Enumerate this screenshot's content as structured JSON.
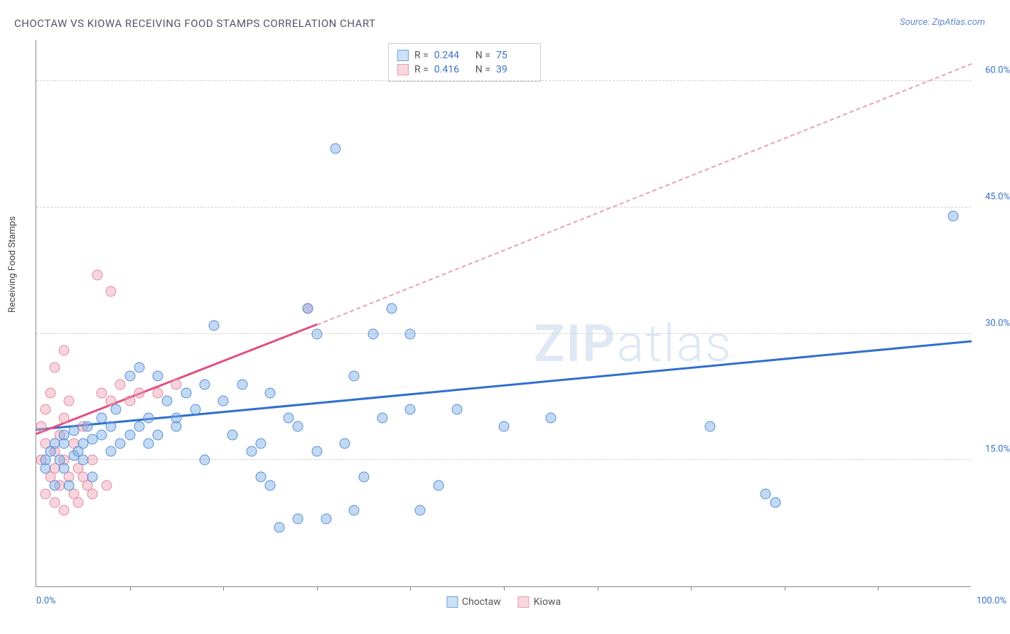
{
  "title": "CHOCTAW VS KIOWA RECEIVING FOOD STAMPS CORRELATION CHART",
  "source": "Source: ZipAtlas.com",
  "y_axis_label": "Receiving Food Stamps",
  "watermark_bold": "ZIP",
  "watermark_light": "atlas",
  "chart": {
    "type": "scatter",
    "xlim": [
      0,
      100
    ],
    "ylim": [
      0,
      65
    ],
    "x_tick_positions": [
      10,
      20,
      30,
      40,
      50,
      60,
      70,
      80,
      90
    ],
    "x_label_min": "0.0%",
    "x_label_max": "100.0%",
    "y_grid": [
      {
        "val": 15,
        "label": "15.0%"
      },
      {
        "val": 30,
        "label": "30.0%"
      },
      {
        "val": 45,
        "label": "45.0%"
      },
      {
        "val": 60,
        "label": "60.0%"
      }
    ],
    "grid_color": "#d0d0d0",
    "background_color": "#ffffff",
    "axis_color": "#888888",
    "tick_label_color": "#3970c4",
    "series": [
      {
        "name": "Choctaw",
        "fill": "rgba(120,170,230,0.45)",
        "stroke": "#5a8fd0",
        "swatch_fill": "#cde0f5",
        "swatch_border": "#6fa3dd",
        "R": "0.244",
        "N": "75",
        "trend": {
          "x1": 0,
          "y1": 18.5,
          "x2": 100,
          "y2": 29,
          "color": "#2f6fcf",
          "dashed": false
        },
        "points": [
          [
            1,
            14
          ],
          [
            1,
            15
          ],
          [
            1.5,
            16
          ],
          [
            2,
            12
          ],
          [
            2,
            17
          ],
          [
            2.5,
            15
          ],
          [
            3,
            14
          ],
          [
            3,
            17
          ],
          [
            3,
            18
          ],
          [
            3.5,
            12
          ],
          [
            4,
            15.5
          ],
          [
            4,
            18.5
          ],
          [
            4.5,
            16
          ],
          [
            5,
            17
          ],
          [
            5,
            15
          ],
          [
            5.5,
            19
          ],
          [
            6,
            17.5
          ],
          [
            6,
            13
          ],
          [
            7,
            18
          ],
          [
            7,
            20
          ],
          [
            8,
            16
          ],
          [
            8,
            19
          ],
          [
            8.5,
            21
          ],
          [
            9,
            17
          ],
          [
            10,
            25
          ],
          [
            10,
            18
          ],
          [
            11,
            19
          ],
          [
            11,
            26
          ],
          [
            12,
            20
          ],
          [
            12,
            17
          ],
          [
            13,
            18
          ],
          [
            13,
            25
          ],
          [
            14,
            22
          ],
          [
            15,
            19
          ],
          [
            15,
            20
          ],
          [
            16,
            23
          ],
          [
            17,
            21
          ],
          [
            18,
            24
          ],
          [
            18,
            15
          ],
          [
            19,
            31
          ],
          [
            20,
            22
          ],
          [
            21,
            18
          ],
          [
            22,
            24
          ],
          [
            23,
            16
          ],
          [
            24,
            17
          ],
          [
            24,
            13
          ],
          [
            25,
            23
          ],
          [
            25,
            12
          ],
          [
            26,
            7
          ],
          [
            27,
            20
          ],
          [
            28,
            8
          ],
          [
            28,
            19
          ],
          [
            29,
            33
          ],
          [
            30,
            16
          ],
          [
            30,
            30
          ],
          [
            31,
            8
          ],
          [
            32,
            52
          ],
          [
            33,
            17
          ],
          [
            34,
            25
          ],
          [
            34,
            9
          ],
          [
            35,
            13
          ],
          [
            36,
            30
          ],
          [
            37,
            20
          ],
          [
            38,
            33
          ],
          [
            40,
            21
          ],
          [
            40,
            30
          ],
          [
            41,
            9
          ],
          [
            43,
            12
          ],
          [
            45,
            21
          ],
          [
            50,
            19
          ],
          [
            55,
            20
          ],
          [
            72,
            19
          ],
          [
            78,
            11
          ],
          [
            79,
            10
          ],
          [
            98,
            44
          ]
        ]
      },
      {
        "name": "Kiowa",
        "fill": "rgba(240,160,180,0.45)",
        "stroke": "#e08aa0",
        "swatch_fill": "#f8d7de",
        "swatch_border": "#e6a0b0",
        "R": "0.416",
        "N": "39",
        "trend": {
          "x1": 0,
          "y1": 18,
          "x2": 30,
          "y2": 31,
          "color": "#e05080",
          "dashed": false
        },
        "trend_ext": {
          "x1": 30,
          "y1": 31,
          "x2": 100,
          "y2": 62,
          "color": "#e8a0b8",
          "dashed": true
        },
        "points": [
          [
            0.5,
            15
          ],
          [
            0.5,
            19
          ],
          [
            1,
            11
          ],
          [
            1,
            17
          ],
          [
            1,
            21
          ],
          [
            1.5,
            13
          ],
          [
            1.5,
            23
          ],
          [
            2,
            10
          ],
          [
            2,
            14
          ],
          [
            2,
            16
          ],
          [
            2,
            26
          ],
          [
            2.5,
            12
          ],
          [
            2.5,
            18
          ],
          [
            3,
            9
          ],
          [
            3,
            15
          ],
          [
            3,
            20
          ],
          [
            3,
            28
          ],
          [
            3.5,
            13
          ],
          [
            3.5,
            22
          ],
          [
            4,
            11
          ],
          [
            4,
            17
          ],
          [
            4.5,
            10
          ],
          [
            4.5,
            14
          ],
          [
            5,
            13
          ],
          [
            5,
            19
          ],
          [
            5.5,
            12
          ],
          [
            6,
            15
          ],
          [
            6,
            11
          ],
          [
            6.5,
            37
          ],
          [
            7,
            23
          ],
          [
            7.5,
            12
          ],
          [
            8,
            22
          ],
          [
            8,
            35
          ],
          [
            9,
            24
          ],
          [
            10,
            22
          ],
          [
            11,
            23
          ],
          [
            13,
            23
          ],
          [
            15,
            24
          ],
          [
            29,
            33
          ]
        ]
      }
    ]
  },
  "legend": {
    "label_R": "R =",
    "label_N": "N =",
    "series1_label": "Choctaw",
    "series2_label": "Kiowa"
  }
}
